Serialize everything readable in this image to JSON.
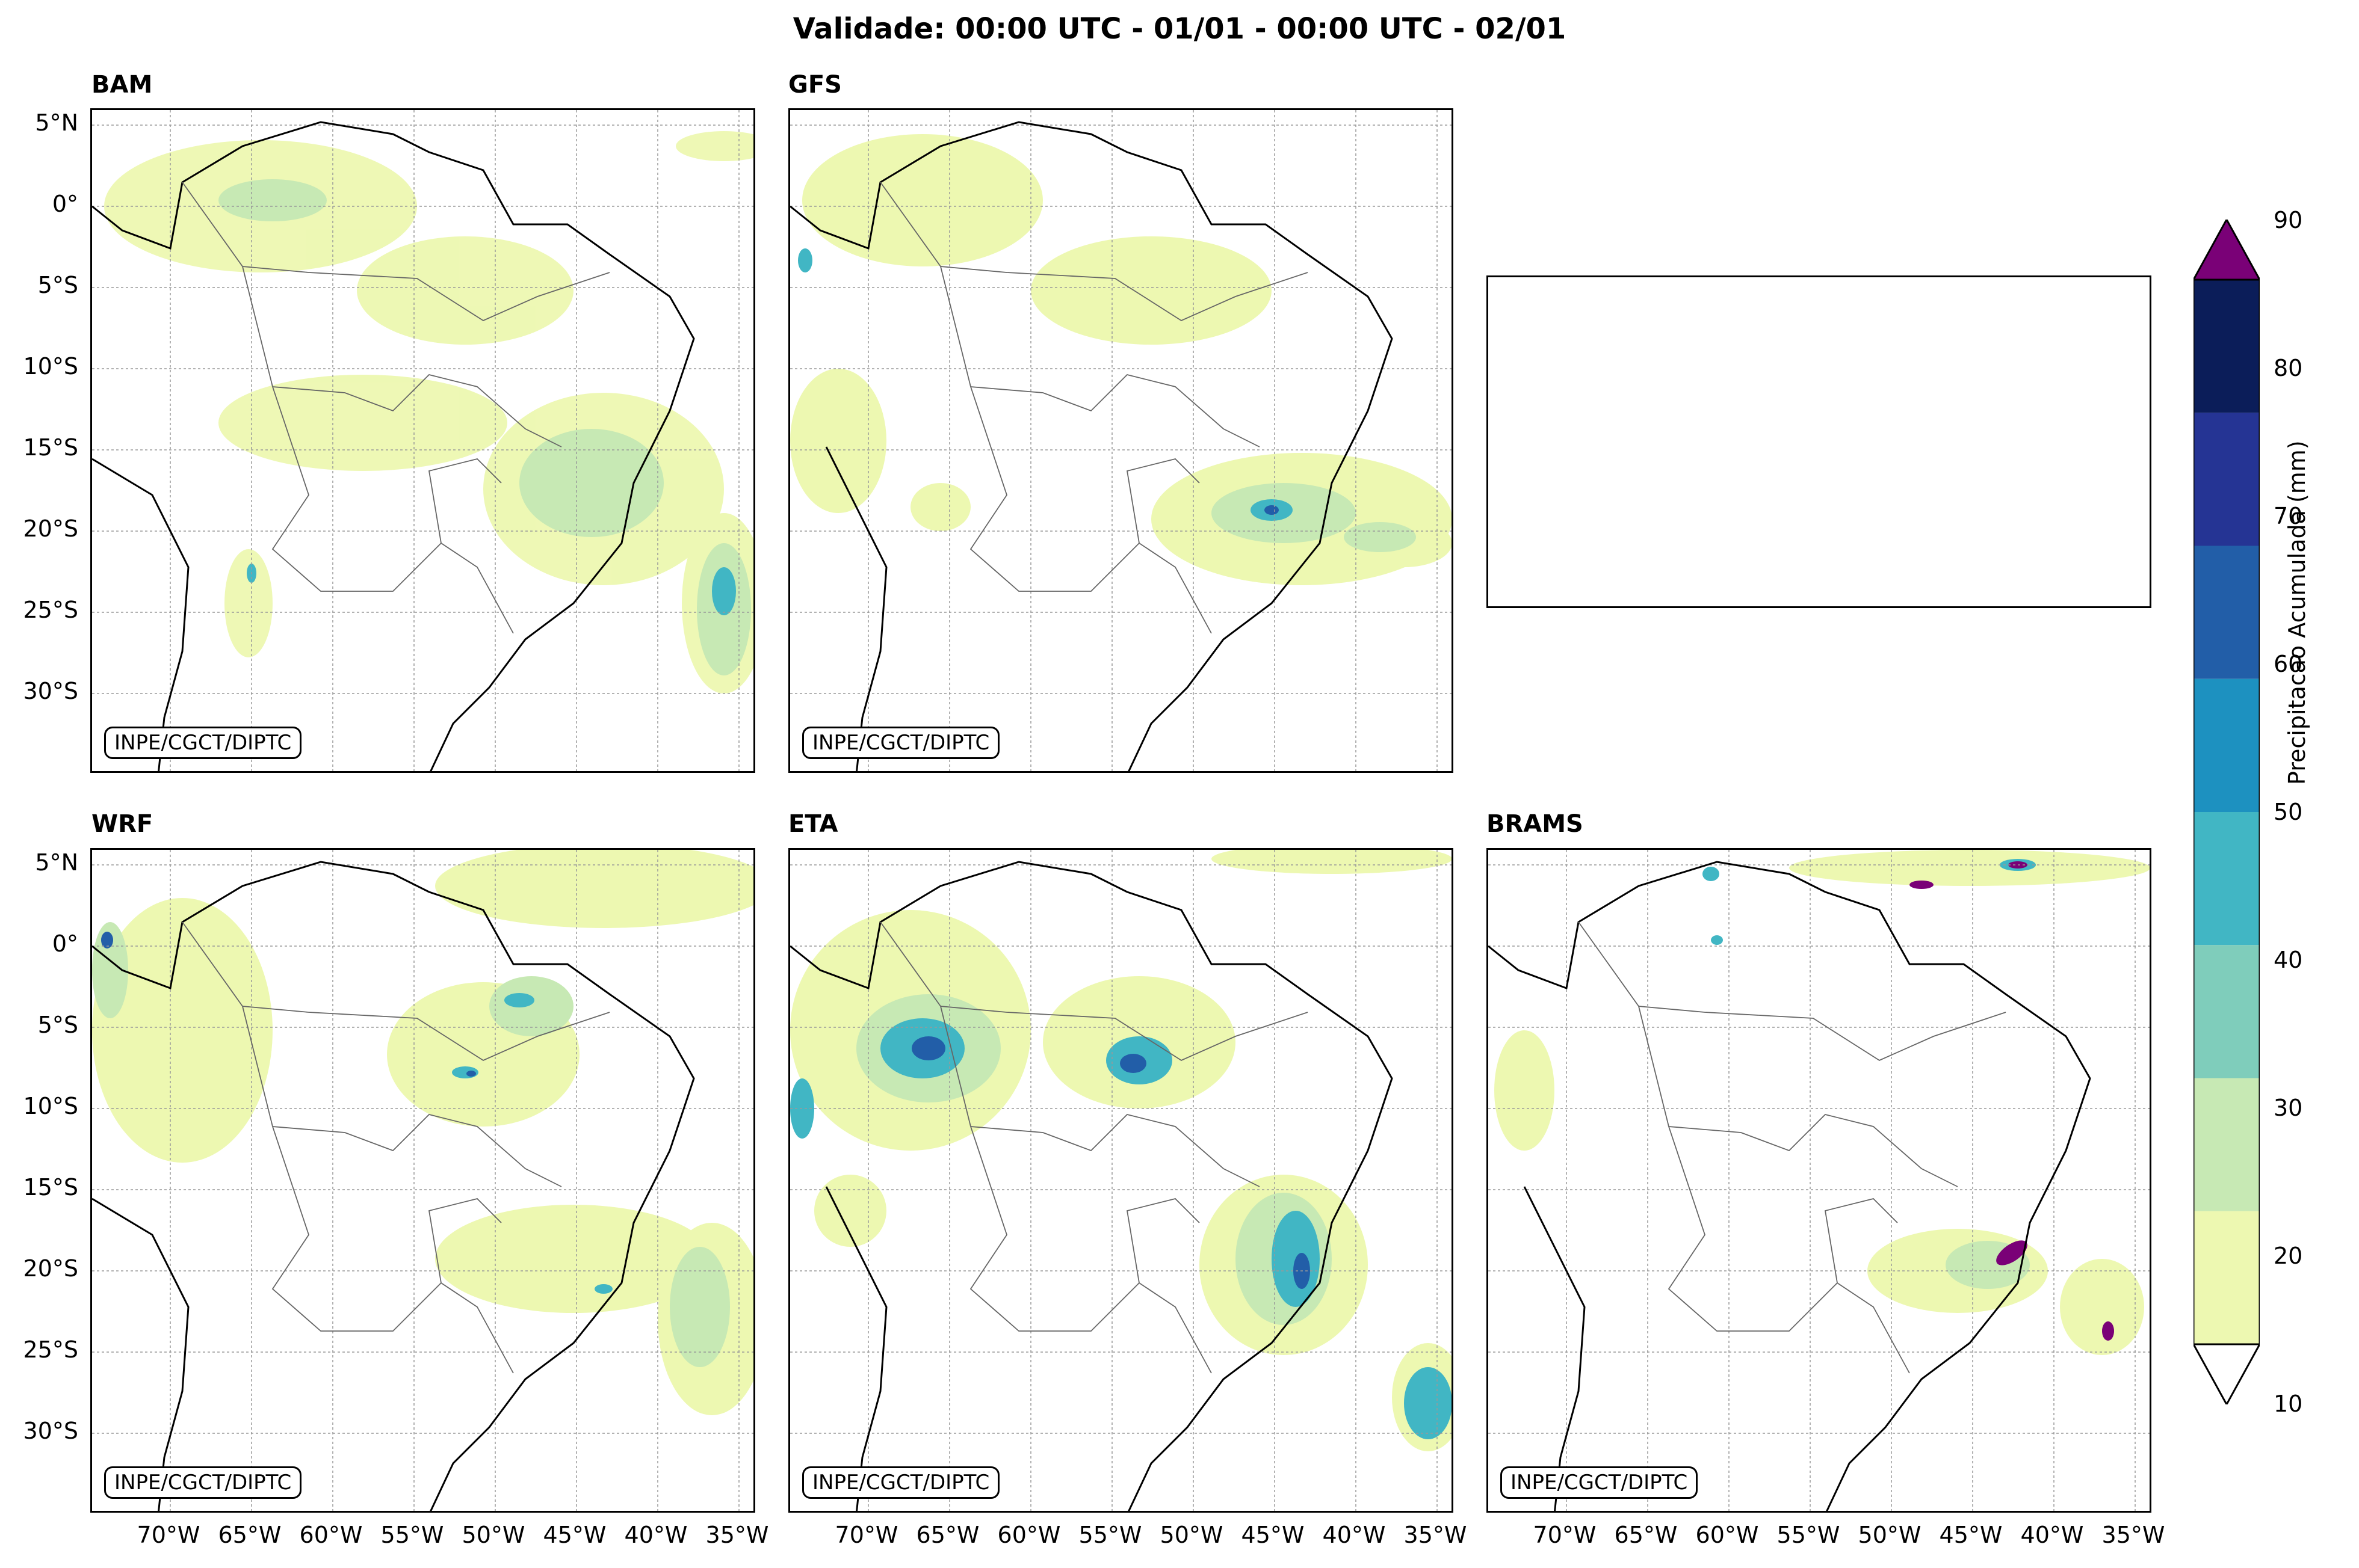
{
  "title": "Validade: 00:00 UTC - 01/01 - 00:00 UTC - 02/01",
  "panels": [
    {
      "name": "BAM",
      "credit": "INPE/CGCT/DIPTC"
    },
    {
      "name": "GFS",
      "credit": "INPE/CGCT/DIPTC"
    },
    {
      "name": "WRF",
      "credit": "INPE/CGCT/DIPTC"
    },
    {
      "name": "ETA",
      "credit": "INPE/CGCT/DIPTC"
    },
    {
      "name": "BRAMS",
      "credit": "INPE/CGCT/DIPTC"
    }
  ],
  "lat_labels": [
    "5°N",
    "0°",
    "5°S",
    "10°S",
    "15°S",
    "20°S",
    "25°S",
    "30°S"
  ],
  "lon_labels": [
    "70°W",
    "65°W",
    "60°W",
    "55°W",
    "50°W",
    "45°W",
    "40°W",
    "35°W"
  ],
  "colorbar": {
    "label": "Precipitacao Acumulada (mm)",
    "ticks": [
      "90",
      "80",
      "70",
      "60",
      "50",
      "40",
      "30",
      "20",
      "10"
    ],
    "colors": [
      "#0b1d59",
      "#253494",
      "#225ea8",
      "#1d91c0",
      "#41b6c4",
      "#7fcdbb",
      "#c7e9b4",
      "#edf8b1"
    ],
    "extend_max_color": "#7a0177",
    "extend_min_color": "#ffffff"
  }
}
